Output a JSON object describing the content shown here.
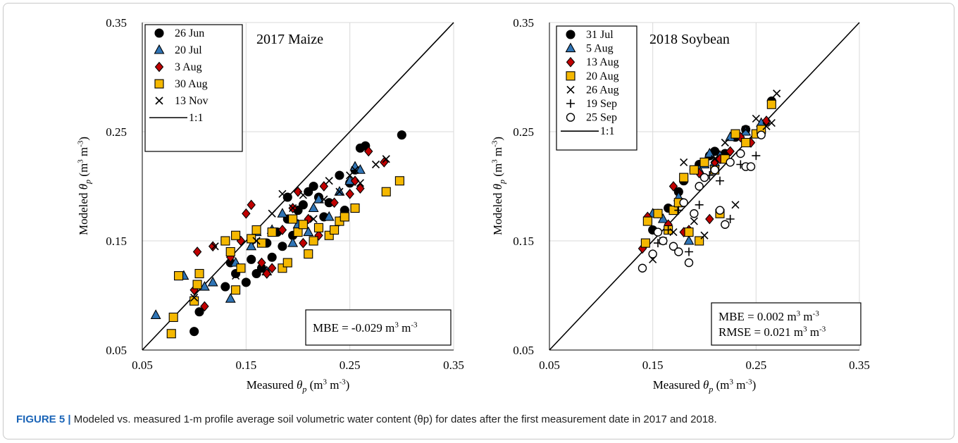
{
  "chart_data": [
    {
      "type": "scatter",
      "title": "2017 Maize",
      "xlabel": "Measured θp (m3 m-3)",
      "ylabel": "Modeled θp (m3 m-3)",
      "xlim": [
        0.05,
        0.35
      ],
      "ylim": [
        0.05,
        0.35
      ],
      "xticks": [
        "0.05",
        "0.15",
        "0.25",
        "0.35"
      ],
      "yticks": [
        "0.05",
        "0.15",
        "0.25",
        "0.35"
      ],
      "grid": true,
      "legend_position": "top-left",
      "one_to_one_line": true,
      "annotation": [
        "MBE = -0.029 m3 m-3"
      ],
      "series": [
        {
          "name": "26 Jun",
          "marker": "circle",
          "color": "#000000",
          "x": [
            0.1,
            0.105,
            0.13,
            0.135,
            0.14,
            0.15,
            0.155,
            0.16,
            0.165,
            0.17,
            0.175,
            0.18,
            0.185,
            0.19,
            0.19,
            0.195,
            0.2,
            0.205,
            0.21,
            0.215,
            0.22,
            0.225,
            0.23,
            0.24,
            0.245,
            0.25,
            0.255,
            0.26,
            0.265,
            0.3
          ],
          "y": [
            0.067,
            0.085,
            0.108,
            0.13,
            0.12,
            0.112,
            0.133,
            0.12,
            0.125,
            0.148,
            0.135,
            0.158,
            0.145,
            0.17,
            0.19,
            0.155,
            0.178,
            0.183,
            0.195,
            0.2,
            0.19,
            0.172,
            0.185,
            0.21,
            0.178,
            0.203,
            0.215,
            0.235,
            0.237,
            0.247
          ]
        },
        {
          "name": "20 Jul",
          "marker": "triangle",
          "color": "#2f74b5",
          "x": [
            0.063,
            0.09,
            0.11,
            0.118,
            0.135,
            0.14,
            0.155,
            0.16,
            0.17,
            0.175,
            0.185,
            0.195,
            0.2,
            0.21,
            0.215,
            0.22,
            0.23,
            0.24,
            0.25,
            0.255,
            0.26
          ],
          "y": [
            0.082,
            0.118,
            0.108,
            0.112,
            0.097,
            0.13,
            0.145,
            0.158,
            0.122,
            0.16,
            0.175,
            0.148,
            0.165,
            0.158,
            0.18,
            0.188,
            0.172,
            0.195,
            0.205,
            0.218,
            0.215
          ]
        },
        {
          "name": "3 Aug",
          "marker": "diamond",
          "color": "#c00000",
          "x": [
            0.1,
            0.103,
            0.11,
            0.118,
            0.135,
            0.145,
            0.15,
            0.155,
            0.165,
            0.17,
            0.175,
            0.185,
            0.195,
            0.2,
            0.205,
            0.21,
            0.22,
            0.225,
            0.235,
            0.24,
            0.25,
            0.255,
            0.26,
            0.268,
            0.283
          ],
          "y": [
            0.105,
            0.14,
            0.09,
            0.145,
            0.135,
            0.15,
            0.175,
            0.183,
            0.13,
            0.12,
            0.125,
            0.16,
            0.18,
            0.195,
            0.148,
            0.17,
            0.155,
            0.2,
            0.185,
            0.168,
            0.193,
            0.205,
            0.198,
            0.232,
            0.222
          ]
        },
        {
          "name": "30 Aug",
          "marker": "square",
          "color": "#f5b800",
          "x": [
            0.078,
            0.08,
            0.085,
            0.1,
            0.103,
            0.105,
            0.13,
            0.135,
            0.14,
            0.14,
            0.145,
            0.155,
            0.16,
            0.165,
            0.175,
            0.185,
            0.19,
            0.195,
            0.2,
            0.205,
            0.21,
            0.215,
            0.22,
            0.23,
            0.235,
            0.24,
            0.245,
            0.255,
            0.285,
            0.298
          ],
          "y": [
            0.065,
            0.08,
            0.118,
            0.095,
            0.11,
            0.12,
            0.15,
            0.14,
            0.105,
            0.155,
            0.125,
            0.152,
            0.16,
            0.148,
            0.158,
            0.125,
            0.13,
            0.17,
            0.158,
            0.165,
            0.138,
            0.15,
            0.162,
            0.155,
            0.16,
            0.168,
            0.172,
            0.18,
            0.195,
            0.205
          ]
        },
        {
          "name": "13 Nov",
          "marker": "x",
          "color": "#000000",
          "x": [
            0.1,
            0.12,
            0.14,
            0.16,
            0.175,
            0.185,
            0.195,
            0.205,
            0.215,
            0.225,
            0.23,
            0.24,
            0.25,
            0.255,
            0.26,
            0.275,
            0.285
          ],
          "y": [
            0.098,
            0.145,
            0.118,
            0.15,
            0.175,
            0.193,
            0.18,
            0.192,
            0.17,
            0.188,
            0.205,
            0.195,
            0.21,
            0.215,
            0.203,
            0.22,
            0.225
          ]
        }
      ]
    },
    {
      "type": "scatter",
      "title": "2018 Soybean",
      "xlabel": "Measured θp (m3 m-3)",
      "ylabel": "Modeled θp (m3 m-3)",
      "xlim": [
        0.05,
        0.35
      ],
      "ylim": [
        0.05,
        0.35
      ],
      "xticks": [
        "0.05",
        "0.15",
        "0.25",
        "0.35"
      ],
      "yticks": [
        "0.05",
        "0.15",
        "0.25",
        "0.35"
      ],
      "grid": true,
      "legend_position": "top-left",
      "one_to_one_line": true,
      "annotation": [
        "MBE = 0.002 m3 m-3",
        "RMSE = 0.021 m3 m-3"
      ],
      "series": [
        {
          "name": "31 Jul",
          "marker": "circle",
          "color": "#000000",
          "x": [
            0.15,
            0.155,
            0.165,
            0.175,
            0.18,
            0.19,
            0.195,
            0.205,
            0.21,
            0.22,
            0.23,
            0.24,
            0.255,
            0.265
          ],
          "y": [
            0.16,
            0.175,
            0.18,
            0.195,
            0.205,
            0.215,
            0.22,
            0.228,
            0.232,
            0.23,
            0.245,
            0.252,
            0.25,
            0.278
          ]
        },
        {
          "name": "5 Aug",
          "marker": "triangle",
          "color": "#2f74b5",
          "x": [
            0.15,
            0.16,
            0.175,
            0.185,
            0.195,
            0.2,
            0.205,
            0.21,
            0.215,
            0.225,
            0.24,
            0.255
          ],
          "y": [
            0.175,
            0.17,
            0.19,
            0.15,
            0.215,
            0.22,
            0.23,
            0.222,
            0.228,
            0.245,
            0.25,
            0.258
          ]
        },
        {
          "name": "13 Aug",
          "marker": "diamond",
          "color": "#c00000",
          "x": [
            0.14,
            0.145,
            0.165,
            0.17,
            0.18,
            0.185,
            0.195,
            0.205,
            0.21,
            0.215,
            0.225,
            0.235,
            0.245,
            0.26
          ],
          "y": [
            0.143,
            0.172,
            0.165,
            0.2,
            0.158,
            0.16,
            0.212,
            0.17,
            0.222,
            0.225,
            0.232,
            0.245,
            0.24,
            0.26
          ]
        },
        {
          "name": "20 Aug",
          "marker": "square",
          "color": "#f5b800",
          "x": [
            0.143,
            0.145,
            0.155,
            0.165,
            0.17,
            0.175,
            0.18,
            0.185,
            0.19,
            0.195,
            0.2,
            0.21,
            0.215,
            0.22,
            0.23,
            0.24,
            0.25,
            0.255,
            0.265
          ],
          "y": [
            0.148,
            0.168,
            0.175,
            0.16,
            0.178,
            0.185,
            0.208,
            0.158,
            0.215,
            0.15,
            0.222,
            0.215,
            0.175,
            0.225,
            0.248,
            0.24,
            0.248,
            0.252,
            0.275
          ]
        },
        {
          "name": "26 Aug",
          "marker": "x",
          "color": "#000000",
          "x": [
            0.15,
            0.16,
            0.17,
            0.18,
            0.19,
            0.2,
            0.21,
            0.22,
            0.23,
            0.24,
            0.25,
            0.26,
            0.265,
            0.27
          ],
          "y": [
            0.133,
            0.15,
            0.158,
            0.222,
            0.168,
            0.155,
            0.225,
            0.24,
            0.183,
            0.252,
            0.262,
            0.255,
            0.258,
            0.285
          ]
        },
        {
          "name": "19 Sep",
          "marker": "plus",
          "color": "#000000",
          "x": [
            0.155,
            0.165,
            0.175,
            0.185,
            0.195,
            0.205,
            0.215,
            0.225,
            0.235,
            0.25
          ],
          "y": [
            0.148,
            0.16,
            0.178,
            0.14,
            0.183,
            0.21,
            0.205,
            0.17,
            0.22,
            0.228
          ]
        },
        {
          "name": "25 Sep",
          "marker": "open-circle",
          "color": "#000000",
          "x": [
            0.14,
            0.15,
            0.155,
            0.16,
            0.17,
            0.175,
            0.18,
            0.185,
            0.19,
            0.195,
            0.2,
            0.21,
            0.215,
            0.22,
            0.225,
            0.235,
            0.24,
            0.245,
            0.255
          ],
          "y": [
            0.125,
            0.138,
            0.158,
            0.15,
            0.145,
            0.14,
            0.185,
            0.13,
            0.175,
            0.2,
            0.208,
            0.215,
            0.178,
            0.165,
            0.222,
            0.23,
            0.218,
            0.218,
            0.247
          ]
        }
      ]
    }
  ],
  "caption": {
    "label": "FIGURE 5 |",
    "text": " Modeled vs. measured 1-m profile average soil volumetric water content (θp) for dates after the first measurement date in 2017 and 2018."
  }
}
